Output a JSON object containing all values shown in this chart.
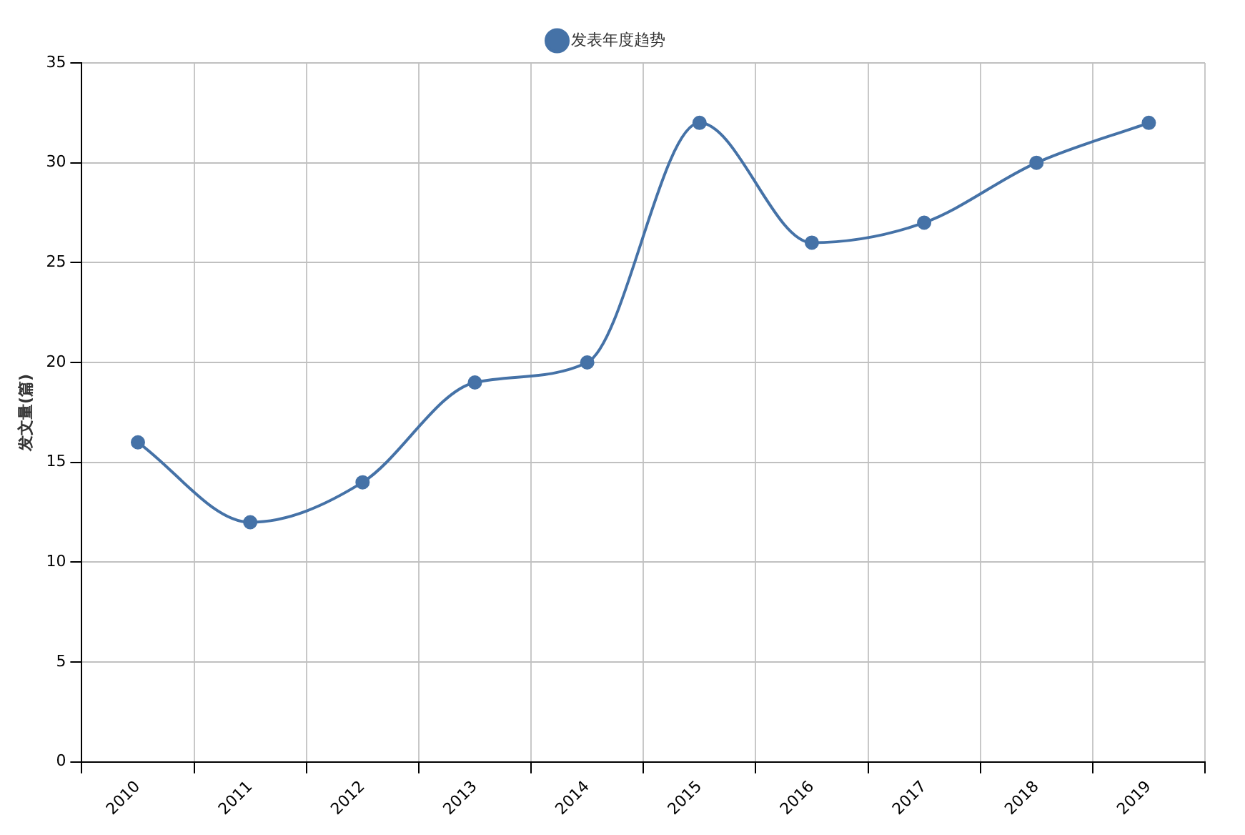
{
  "chart_data": {
    "type": "line",
    "ylabel": "发文量(篇)",
    "categories": [
      "2010",
      "2011",
      "2012",
      "2013",
      "2014",
      "2015",
      "2016",
      "2017",
      "2018",
      "2019"
    ],
    "series": [
      {
        "name": "发表年度趋势",
        "color": "#4572a7",
        "values": [
          16,
          12,
          14,
          19,
          20,
          32,
          26,
          27,
          30,
          32
        ]
      }
    ],
    "ylim": [
      0,
      35
    ],
    "yticks": [
      0,
      5,
      10,
      15,
      20,
      25,
      30,
      35
    ],
    "grid": true,
    "legend": "top",
    "marker": "circle",
    "line_style": "solid"
  }
}
